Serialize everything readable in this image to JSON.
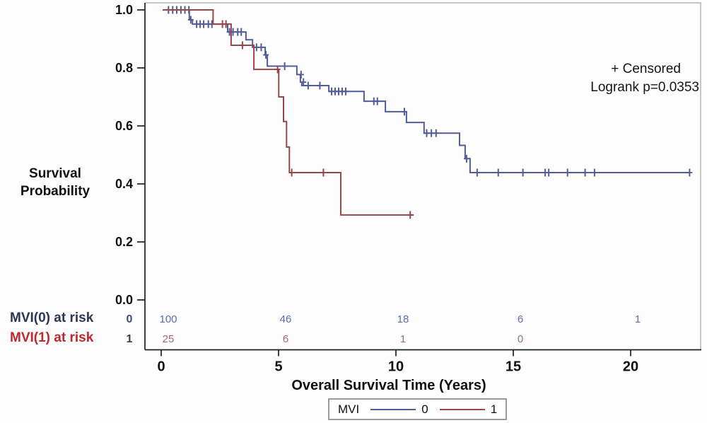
{
  "figure": {
    "y_axis": {
      "title_line1": "Survival",
      "title_line2": "Probability",
      "ticks": [
        "1.0",
        "0.8",
        "0.6",
        "0.4",
        "0.2",
        "0.0"
      ],
      "tick_values": [
        1.0,
        0.8,
        0.6,
        0.4,
        0.2,
        0.0
      ]
    },
    "x_axis": {
      "title": "Overall Survival Time (Years)",
      "ticks": [
        "0",
        "5",
        "10",
        "15",
        "20"
      ],
      "tick_values": [
        0,
        5,
        10,
        15,
        20
      ]
    },
    "annotations": {
      "censored": "+ Censored",
      "logrank": "Logrank p=0.0353"
    },
    "at_risk": {
      "rows": [
        {
          "label": "MVI(0) at risk",
          "marker": "0",
          "counts": [
            "100",
            "46",
            "18",
            "6",
            "1"
          ]
        },
        {
          "label": "MVI(1) at risk",
          "marker": "1",
          "counts": [
            "25",
            "6",
            "1",
            "0",
            ""
          ]
        }
      ]
    },
    "legend": {
      "title": "MVI",
      "items": [
        {
          "label": "0",
          "color_key": "mvi0"
        },
        {
          "label": "1",
          "color_key": "mvi1"
        }
      ]
    },
    "colors": {
      "mvi0": "#515c99",
      "mvi1": "#97464a",
      "mvi0_risk_label": "#2b3657",
      "mvi1_risk_label": "#c1272d",
      "mvi0_count": "#5f6ca8",
      "mvi1_count": "#a5696c",
      "marker0": "#3d4a7d",
      "marker1": "#3f3f3f",
      "axis": "#1f1f1f",
      "frame": "#b5b5b5"
    }
  },
  "chart_data": {
    "type": "line",
    "subtype": "kaplan-meier-step",
    "title": "",
    "xlabel": "Overall Survival Time (Years)",
    "ylabel": "Survival Probability",
    "xlim": [
      0,
      22.9
    ],
    "ylim": [
      0.0,
      1.0
    ],
    "x_ticks": [
      0,
      5,
      10,
      15,
      20
    ],
    "y_ticks": [
      1.0,
      0.8,
      0.6,
      0.4,
      0.2,
      0.0
    ],
    "legend_position": "bottom",
    "grid": false,
    "logrank_p": 0.0353,
    "series": [
      {
        "name": "0",
        "group": "MVI(0)",
        "color_key": "mvi0",
        "steps": [
          [
            0,
            1.0
          ],
          [
            1.14,
            1.0
          ],
          [
            1.14,
            0.966
          ],
          [
            1.27,
            0.966
          ],
          [
            1.27,
            0.951
          ],
          [
            2.77,
            0.951
          ],
          [
            2.77,
            0.924
          ],
          [
            3.55,
            0.924
          ],
          [
            3.55,
            0.897
          ],
          [
            3.83,
            0.897
          ],
          [
            3.83,
            0.871
          ],
          [
            4.37,
            0.871
          ],
          [
            4.37,
            0.845
          ],
          [
            4.46,
            0.845
          ],
          [
            4.46,
            0.806
          ],
          [
            5.72,
            0.806
          ],
          [
            5.72,
            0.777
          ],
          [
            5.87,
            0.777
          ],
          [
            5.87,
            0.751
          ],
          [
            5.93,
            0.751
          ],
          [
            5.93,
            0.739
          ],
          [
            7.08,
            0.739
          ],
          [
            7.08,
            0.719
          ],
          [
            8.58,
            0.719
          ],
          [
            8.58,
            0.685
          ],
          [
            9.49,
            0.685
          ],
          [
            9.49,
            0.649
          ],
          [
            10.39,
            0.649
          ],
          [
            10.39,
            0.612
          ],
          [
            11.14,
            0.612
          ],
          [
            11.14,
            0.575
          ],
          [
            12.65,
            0.575
          ],
          [
            12.65,
            0.533
          ],
          [
            12.89,
            0.533
          ],
          [
            12.89,
            0.487
          ],
          [
            13.1,
            0.487
          ],
          [
            13.1,
            0.439
          ],
          [
            22.5,
            0.439
          ]
        ],
        "censored": [
          [
            0.25,
            1.0
          ],
          [
            0.43,
            1.0
          ],
          [
            0.6,
            1.0
          ],
          [
            0.78,
            1.0
          ],
          [
            0.95,
            1.0
          ],
          [
            1.12,
            1.0
          ],
          [
            1.2,
            0.966
          ],
          [
            1.45,
            0.951
          ],
          [
            1.6,
            0.951
          ],
          [
            1.75,
            0.951
          ],
          [
            1.95,
            0.951
          ],
          [
            2.1,
            0.951
          ],
          [
            2.85,
            0.924
          ],
          [
            3.0,
            0.924
          ],
          [
            3.2,
            0.924
          ],
          [
            3.35,
            0.924
          ],
          [
            4.0,
            0.871
          ],
          [
            4.2,
            0.871
          ],
          [
            4.4,
            0.845
          ],
          [
            5.2,
            0.806
          ],
          [
            5.9,
            0.777
          ],
          [
            6.0,
            0.751
          ],
          [
            6.2,
            0.739
          ],
          [
            6.7,
            0.739
          ],
          [
            7.2,
            0.719
          ],
          [
            7.35,
            0.719
          ],
          [
            7.5,
            0.719
          ],
          [
            7.65,
            0.719
          ],
          [
            7.8,
            0.719
          ],
          [
            9.0,
            0.685
          ],
          [
            9.15,
            0.685
          ],
          [
            10.3,
            0.649
          ],
          [
            11.25,
            0.575
          ],
          [
            11.45,
            0.575
          ],
          [
            11.65,
            0.575
          ],
          [
            12.95,
            0.487
          ],
          [
            13.4,
            0.439
          ],
          [
            14.3,
            0.439
          ],
          [
            15.35,
            0.439
          ],
          [
            16.3,
            0.439
          ],
          [
            16.45,
            0.439
          ],
          [
            17.25,
            0.439
          ],
          [
            18.0,
            0.439
          ],
          [
            18.4,
            0.439
          ],
          [
            22.45,
            0.439
          ]
        ],
        "at_risk": [
          100,
          46,
          18,
          6,
          1
        ]
      },
      {
        "name": "1",
        "group": "MVI(1)",
        "color_key": "mvi1",
        "steps": [
          [
            0,
            1.0
          ],
          [
            2.15,
            1.0
          ],
          [
            2.15,
            0.951
          ],
          [
            2.92,
            0.951
          ],
          [
            2.92,
            0.878
          ],
          [
            3.89,
            0.878
          ],
          [
            3.89,
            0.795
          ],
          [
            4.95,
            0.795
          ],
          [
            4.95,
            0.7
          ],
          [
            5.15,
            0.7
          ],
          [
            5.15,
            0.615
          ],
          [
            5.28,
            0.615
          ],
          [
            5.28,
            0.527
          ],
          [
            5.4,
            0.527
          ],
          [
            5.4,
            0.439
          ],
          [
            7.59,
            0.439
          ],
          [
            7.59,
            0.293
          ],
          [
            10.7,
            0.293
          ]
        ],
        "censored": [
          [
            2.55,
            0.951
          ],
          [
            2.7,
            0.951
          ],
          [
            3.4,
            0.878
          ],
          [
            4.9,
            0.795
          ],
          [
            5.5,
            0.439
          ],
          [
            6.85,
            0.439
          ],
          [
            10.55,
            0.293
          ]
        ],
        "at_risk": [
          25,
          6,
          1,
          0,
          null
        ]
      }
    ]
  }
}
